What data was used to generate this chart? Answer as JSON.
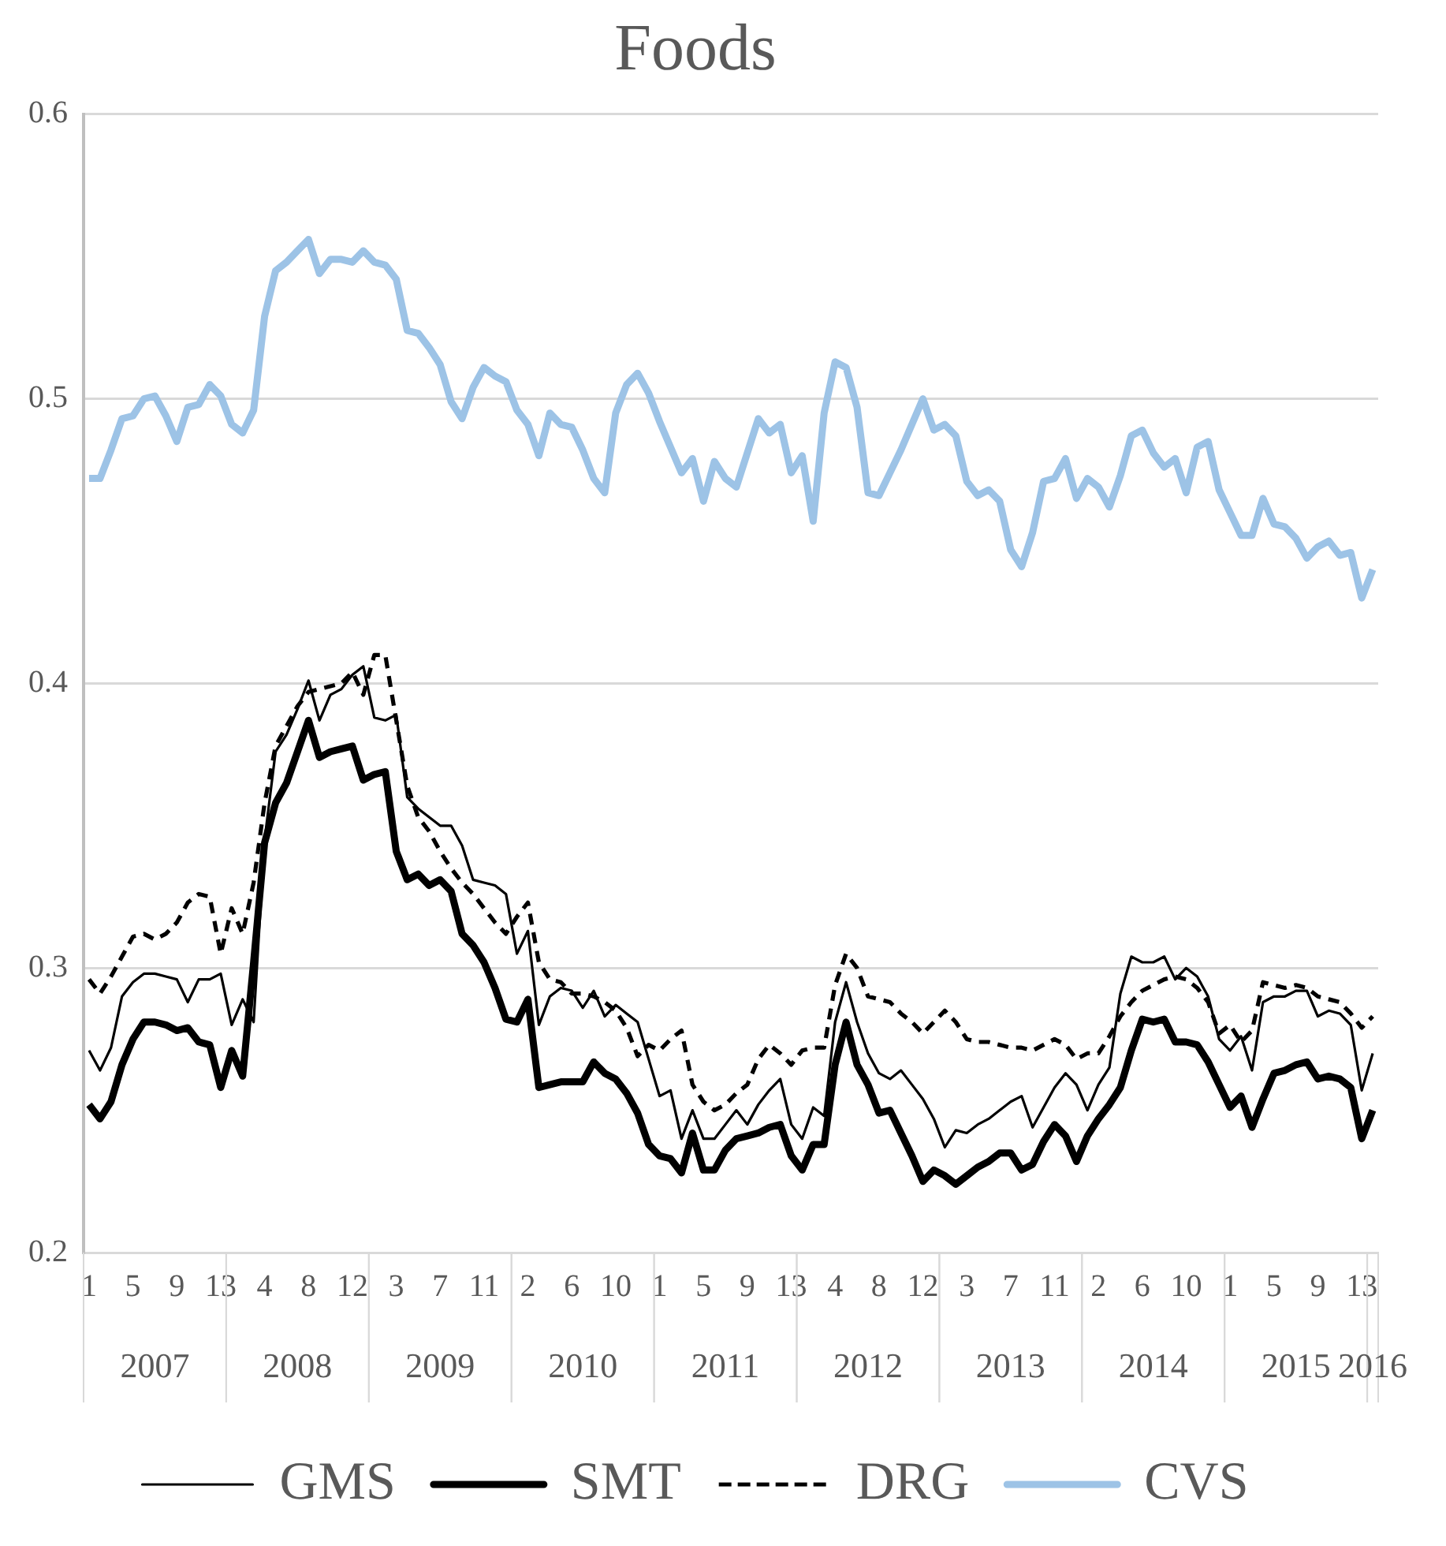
{
  "chart_data": {
    "type": "line",
    "title": "Foods",
    "categories": [
      "1",
      null,
      null,
      null,
      "5",
      null,
      null,
      null,
      "9",
      null,
      null,
      null,
      "13",
      null,
      null,
      null,
      "4",
      null,
      null,
      null,
      "8",
      null,
      null,
      null,
      "12",
      null,
      null,
      null,
      "3",
      null,
      null,
      null,
      "7",
      null,
      null,
      null,
      "11",
      null,
      null,
      null,
      "2",
      null,
      null,
      null,
      "6",
      null,
      null,
      null,
      "10",
      null,
      null,
      null,
      "1",
      null,
      null,
      null,
      "5",
      null,
      null,
      null,
      "9",
      null,
      null,
      null,
      "13",
      null,
      null,
      null,
      "4",
      null,
      null,
      null,
      "8",
      null,
      null,
      null,
      "12",
      null,
      null,
      null,
      "3",
      null,
      null,
      null,
      "7",
      null,
      null,
      null,
      "11",
      null,
      null,
      null,
      "2",
      null,
      null,
      null,
      "6",
      null,
      null,
      null,
      "10",
      null,
      null,
      null,
      "1",
      null,
      null,
      null,
      "5",
      null,
      null,
      null,
      "9",
      null,
      null,
      null,
      "13",
      null
    ],
    "annotations": [
      "2007",
      "2008",
      "2009",
      "2010",
      "2011",
      "2012",
      "2013",
      "2014",
      "2015",
      "2016"
    ],
    "series": [
      {
        "name": "GMS",
        "color": "#000000",
        "line_style": "solid",
        "values": [
          0.271,
          0.264,
          0.272,
          0.29,
          0.295,
          0.298,
          0.298,
          0.297,
          0.296,
          0.288,
          0.296,
          0.296,
          0.298,
          0.28,
          0.289,
          0.281,
          0.345,
          0.376,
          0.382,
          0.391,
          0.401,
          0.387,
          0.396,
          0.398,
          0.403,
          0.406,
          0.388,
          0.387,
          0.389,
          0.36,
          0.356,
          0.353,
          0.35,
          0.35,
          0.343,
          0.331,
          0.33,
          0.329,
          0.326,
          0.305,
          0.313,
          0.28,
          0.29,
          0.293,
          0.292,
          0.286,
          0.292,
          0.283,
          0.287,
          0.284,
          0.281,
          0.268,
          0.255,
          0.257,
          0.24,
          0.25,
          0.24,
          0.24,
          0.245,
          0.25,
          0.245,
          0.252,
          0.257,
          0.261,
          0.245,
          0.24,
          0.251,
          0.248,
          0.281,
          0.295,
          0.281,
          0.27,
          0.263,
          0.261,
          0.264,
          0.259,
          0.254,
          0.247,
          0.237,
          0.243,
          0.242,
          0.245,
          0.247,
          0.25,
          0.253,
          0.255,
          0.244,
          0.251,
          0.258,
          0.263,
          0.259,
          0.25,
          0.259,
          0.265,
          0.291,
          0.304,
          0.302,
          0.302,
          0.304,
          0.296,
          0.3,
          0.297,
          0.29,
          0.275,
          0.271,
          0.276,
          0.264,
          0.288,
          0.29,
          0.29,
          0.292,
          0.292,
          0.283,
          0.285,
          0.284,
          0.28,
          0.257,
          0.27
        ]
      },
      {
        "name": "SMT",
        "color": "#000000",
        "line_style": "solid",
        "values": [
          0.252,
          0.247,
          0.253,
          0.266,
          0.275,
          0.281,
          0.281,
          0.28,
          0.278,
          0.279,
          0.274,
          0.273,
          0.258,
          0.271,
          0.262,
          0.302,
          0.344,
          0.358,
          0.365,
          0.376,
          0.387,
          0.374,
          0.376,
          0.377,
          0.378,
          0.366,
          0.368,
          0.369,
          0.341,
          0.331,
          0.333,
          0.329,
          0.331,
          0.327,
          0.312,
          0.308,
          0.302,
          0.293,
          0.282,
          0.281,
          0.289,
          0.258,
          0.259,
          0.26,
          0.26,
          0.26,
          0.267,
          0.263,
          0.261,
          0.256,
          0.249,
          0.238,
          0.234,
          0.233,
          0.228,
          0.242,
          0.229,
          0.229,
          0.236,
          0.24,
          0.241,
          0.242,
          0.244,
          0.245,
          0.234,
          0.229,
          0.238,
          0.238,
          0.266,
          0.281,
          0.266,
          0.259,
          0.249,
          0.25,
          0.242,
          0.234,
          0.225,
          0.229,
          0.227,
          0.224,
          0.227,
          0.23,
          0.232,
          0.235,
          0.235,
          0.229,
          0.231,
          0.239,
          0.245,
          0.241,
          0.232,
          0.241,
          0.247,
          0.252,
          0.258,
          0.271,
          0.282,
          0.281,
          0.282,
          0.274,
          0.274,
          0.273,
          0.267,
          0.259,
          0.251,
          0.255,
          0.244,
          0.254,
          0.263,
          0.264,
          0.266,
          0.267,
          0.261,
          0.262,
          0.261,
          0.258,
          0.24,
          0.25
        ]
      },
      {
        "name": "DRG",
        "color": "#000000",
        "line_style": "dashed",
        "values": [
          0.296,
          0.291,
          0.297,
          0.304,
          0.311,
          0.312,
          0.31,
          0.312,
          0.316,
          0.323,
          0.326,
          0.325,
          0.305,
          0.321,
          0.312,
          0.33,
          0.358,
          0.378,
          0.385,
          0.392,
          0.397,
          0.398,
          0.399,
          0.4,
          0.404,
          0.396,
          0.41,
          0.41,
          0.387,
          0.364,
          0.353,
          0.348,
          0.341,
          0.335,
          0.33,
          0.326,
          0.321,
          0.316,
          0.312,
          0.318,
          0.323,
          0.302,
          0.296,
          0.295,
          0.291,
          0.291,
          0.29,
          0.288,
          0.285,
          0.279,
          0.269,
          0.273,
          0.271,
          0.275,
          0.278,
          0.259,
          0.253,
          0.25,
          0.252,
          0.256,
          0.259,
          0.268,
          0.273,
          0.27,
          0.266,
          0.271,
          0.272,
          0.272,
          0.294,
          0.305,
          0.3,
          0.29,
          0.289,
          0.288,
          0.284,
          0.281,
          0.277,
          0.281,
          0.285,
          0.281,
          0.275,
          0.274,
          0.274,
          0.273,
          0.272,
          0.272,
          0.271,
          0.273,
          0.275,
          0.273,
          0.268,
          0.27,
          0.27,
          0.276,
          0.283,
          0.288,
          0.292,
          0.294,
          0.296,
          0.297,
          0.296,
          0.293,
          0.288,
          0.277,
          0.28,
          0.274,
          0.278,
          0.295,
          0.294,
          0.293,
          0.294,
          0.293,
          0.29,
          0.289,
          0.288,
          0.284,
          0.279,
          0.283
        ]
      },
      {
        "name": "CVS",
        "color": "#9dc3e6",
        "line_style": "solid",
        "values": [
          0.472,
          0.472,
          0.482,
          0.493,
          0.494,
          0.5,
          0.501,
          0.494,
          0.485,
          0.497,
          0.498,
          0.505,
          0.501,
          0.491,
          0.488,
          0.496,
          0.529,
          0.545,
          0.548,
          0.552,
          0.556,
          0.544,
          0.549,
          0.549,
          0.548,
          0.552,
          0.548,
          0.547,
          0.542,
          0.524,
          0.523,
          0.518,
          0.512,
          0.499,
          0.493,
          0.504,
          0.511,
          0.508,
          0.506,
          0.496,
          0.491,
          0.48,
          0.495,
          0.491,
          0.49,
          0.482,
          0.472,
          0.467,
          0.495,
          0.505,
          0.509,
          0.502,
          0.492,
          0.483,
          0.474,
          0.479,
          0.464,
          0.478,
          0.472,
          0.469,
          0.481,
          0.493,
          0.488,
          0.491,
          0.474,
          0.48,
          0.457,
          0.495,
          0.513,
          0.511,
          0.497,
          0.467,
          0.466,
          0.474,
          0.482,
          0.491,
          0.5,
          0.489,
          0.491,
          0.487,
          0.471,
          0.466,
          0.468,
          0.464,
          0.447,
          0.441,
          0.453,
          0.471,
          0.472,
          0.479,
          0.465,
          0.472,
          0.469,
          0.462,
          0.473,
          0.487,
          0.489,
          0.481,
          0.476,
          0.479,
          0.467,
          0.483,
          0.485,
          0.468,
          0.46,
          0.452,
          0.452,
          0.465,
          0.456,
          0.455,
          0.451,
          0.444,
          0.448,
          0.45,
          0.445,
          0.446,
          0.43,
          0.44
        ]
      }
    ],
    "ylim": [
      0.2,
      0.6
    ],
    "yticks": [
      0.2,
      0.3,
      0.4,
      0.5,
      0.6
    ],
    "grid": "y",
    "legend": "bottom",
    "marker": "none"
  }
}
